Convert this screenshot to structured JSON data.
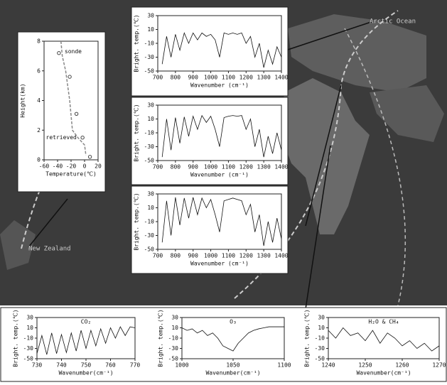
{
  "map_labels": [
    "Arctic Ocean",
    "New Zealand"
  ],
  "chart_data": [
    {
      "type": "line",
      "xlabel": "Temperature(℃)",
      "ylabel": "Height(km)",
      "xlim": [
        -60,
        20
      ],
      "xticks": [
        -60,
        -40,
        -20,
        0,
        20
      ],
      "ylim": [
        0,
        8
      ],
      "yticks": [
        0,
        2,
        4,
        6,
        8
      ],
      "series": [
        {
          "name": "retrieved",
          "style": "dashed",
          "color": "#888888",
          "x": [
            -35,
            -33,
            -28,
            -25,
            -22,
            -20,
            -18,
            -10,
            0,
            2
          ],
          "values": [
            8,
            7,
            6,
            5,
            4,
            3,
            2,
            1.5,
            1,
            0.3
          ]
        },
        {
          "name": "sonde",
          "style": "circle",
          "color": "#444444",
          "x": [
            -38,
            -22,
            -12,
            -3,
            8
          ],
          "values": [
            7.2,
            5.6,
            3.1,
            1.5,
            0.2
          ]
        }
      ]
    },
    {
      "type": "line",
      "xlabel": "Wavenumber (cm⁻¹)",
      "ylabel": "Bright. temp.(℃)",
      "xlim": [
        700,
        1400
      ],
      "xticks": [
        700,
        800,
        900,
        1000,
        1100,
        1200,
        1300,
        1400
      ],
      "ylim": [
        -50,
        30
      ],
      "yticks": [
        -50,
        -30,
        -10,
        10,
        30
      ],
      "x": [
        725,
        750,
        775,
        800,
        825,
        850,
        875,
        900,
        925,
        950,
        975,
        1000,
        1025,
        1050,
        1075,
        1100,
        1125,
        1150,
        1175,
        1200,
        1225,
        1250,
        1275,
        1300,
        1325,
        1350,
        1375,
        1400
      ],
      "series": [
        {
          "color": "#111111",
          "values": [
            -40,
            0,
            -30,
            3,
            -20,
            5,
            -10,
            5,
            -5,
            5,
            0,
            3,
            -5,
            -30,
            5,
            3,
            5,
            3,
            5,
            -10,
            0,
            -30,
            -10,
            -45,
            -20,
            -40,
            -15,
            -30
          ]
        }
      ]
    },
    {
      "type": "line",
      "xlabel": "Wavenumber (cm⁻¹)",
      "ylabel": "Bright. temp.(℃)",
      "xlim": [
        700,
        1400
      ],
      "xticks": [
        700,
        800,
        900,
        1000,
        1100,
        1200,
        1300,
        1400
      ],
      "ylim": [
        -50,
        30
      ],
      "yticks": [
        -50,
        -30,
        -10,
        10,
        30
      ],
      "x": [
        725,
        750,
        775,
        800,
        825,
        850,
        875,
        900,
        925,
        950,
        975,
        1000,
        1025,
        1050,
        1075,
        1100,
        1125,
        1150,
        1175,
        1200,
        1225,
        1250,
        1275,
        1300,
        1325,
        1350,
        1375,
        1400
      ],
      "series": [
        {
          "color": "#111111",
          "values": [
            -45,
            10,
            -35,
            12,
            -25,
            13,
            -15,
            14,
            -5,
            15,
            5,
            14,
            -5,
            -30,
            12,
            14,
            15,
            14,
            15,
            -5,
            10,
            -30,
            -5,
            -45,
            -15,
            -40,
            -10,
            -35
          ]
        }
      ]
    },
    {
      "type": "line",
      "xlabel": "Wavenumber (cm⁻¹)",
      "ylabel": "Bright. temp.(℃)",
      "xlim": [
        700,
        1400
      ],
      "xticks": [
        700,
        800,
        900,
        1000,
        1100,
        1200,
        1300,
        1400
      ],
      "ylim": [
        -50,
        30
      ],
      "yticks": [
        -50,
        -30,
        -10,
        10,
        30
      ],
      "x": [
        725,
        750,
        775,
        800,
        825,
        850,
        875,
        900,
        925,
        950,
        975,
        1000,
        1025,
        1050,
        1075,
        1100,
        1125,
        1150,
        1175,
        1200,
        1225,
        1250,
        1275,
        1300,
        1325,
        1350,
        1375,
        1400
      ],
      "series": [
        {
          "color": "#111111",
          "values": [
            -40,
            20,
            -30,
            25,
            -15,
            24,
            -5,
            25,
            0,
            24,
            10,
            22,
            0,
            -25,
            20,
            22,
            24,
            22,
            20,
            0,
            15,
            -25,
            0,
            -45,
            -10,
            -40,
            -5,
            -35
          ]
        }
      ]
    },
    {
      "type": "line",
      "title": "CO₂",
      "xlabel": "Wavenumber(cm⁻¹)",
      "ylabel": "Bright. temp.(℃)",
      "xlim": [
        730,
        770
      ],
      "xticks": [
        730,
        740,
        750,
        760,
        770
      ],
      "ylim": [
        -50,
        30
      ],
      "yticks": [
        -50,
        -30,
        -10,
        10,
        30
      ],
      "x": [
        730,
        732,
        734,
        736,
        738,
        740,
        742,
        744,
        746,
        748,
        750,
        752,
        754,
        756,
        758,
        760,
        762,
        764,
        766,
        768,
        770
      ],
      "series": [
        {
          "color": "#111111",
          "values": [
            -40,
            -5,
            -42,
            0,
            -40,
            -3,
            -38,
            0,
            -35,
            5,
            -30,
            5,
            -25,
            8,
            -20,
            10,
            -10,
            12,
            -5,
            12,
            10
          ]
        }
      ]
    },
    {
      "type": "line",
      "title": "O₃",
      "xlabel": "Wavenumber(cm⁻¹)",
      "ylabel": "Bright. temp.(℃)",
      "xlim": [
        1000,
        1100
      ],
      "xticks": [
        1000,
        1050,
        1100
      ],
      "ylim": [
        -50,
        30
      ],
      "yticks": [
        -50,
        -30,
        -10,
        10,
        30
      ],
      "x": [
        1000,
        1005,
        1010,
        1015,
        1020,
        1025,
        1030,
        1035,
        1040,
        1045,
        1050,
        1055,
        1060,
        1065,
        1070,
        1075,
        1080,
        1085,
        1090,
        1095,
        1100
      ],
      "series": [
        {
          "color": "#111111",
          "values": [
            10,
            5,
            8,
            0,
            5,
            -5,
            0,
            -10,
            -25,
            -30,
            -35,
            -20,
            -10,
            0,
            5,
            8,
            10,
            12,
            12,
            12,
            12
          ]
        }
      ]
    },
    {
      "type": "line",
      "title": "H₂O & CH₄",
      "xlabel": "Wavenumber(cm⁻¹)",
      "ylabel": "Bright. temp.(℃)",
      "xlim": [
        1240,
        1270
      ],
      "xticks": [
        1240,
        1250,
        1260,
        1270
      ],
      "ylim": [
        -50,
        30
      ],
      "yticks": [
        -50,
        -30,
        -10,
        10,
        30
      ],
      "x": [
        1240,
        1242,
        1244,
        1246,
        1248,
        1250,
        1252,
        1254,
        1256,
        1258,
        1260,
        1262,
        1264,
        1266,
        1268,
        1270
      ],
      "series": [
        {
          "color": "#111111",
          "values": [
            5,
            -10,
            10,
            -5,
            0,
            -15,
            5,
            -20,
            0,
            -10,
            -25,
            -15,
            -30,
            -20,
            -35,
            -25
          ]
        }
      ]
    }
  ]
}
